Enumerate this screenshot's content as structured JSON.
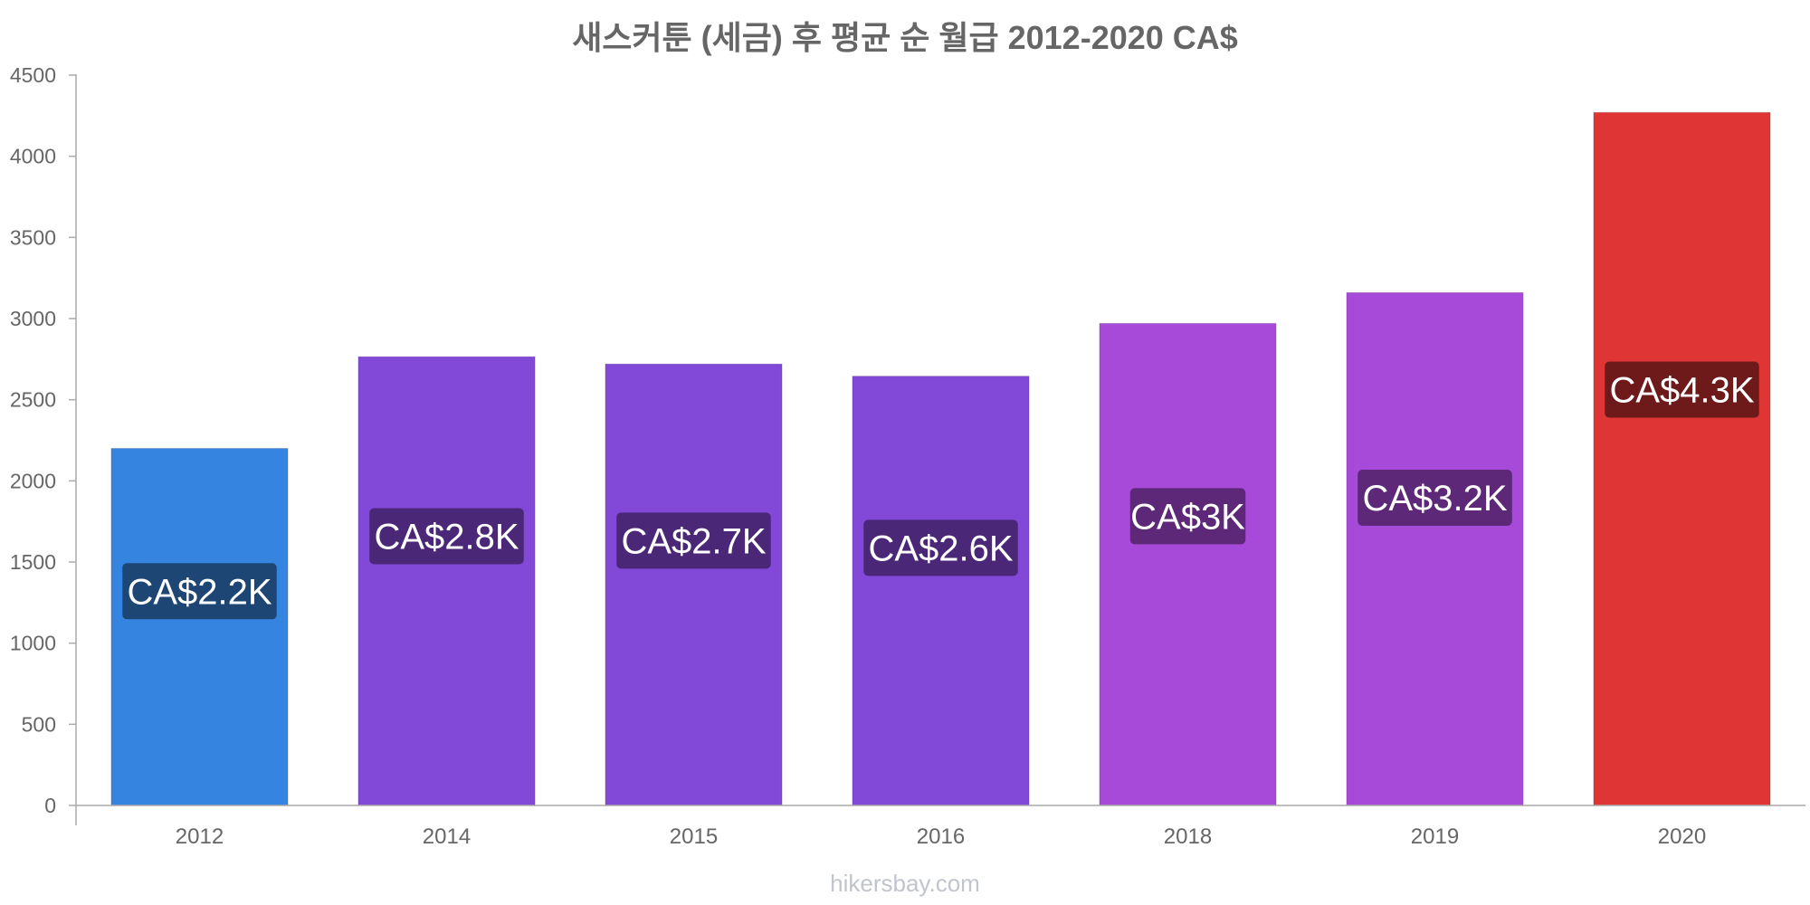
{
  "chart_data": {
    "type": "bar",
    "title": "새스커툰 (세금) 후 평균 순 월급 2012-2020 CA$",
    "xlabel": "",
    "ylabel": "",
    "categories": [
      "2012",
      "2014",
      "2015",
      "2016",
      "2018",
      "2019",
      "2020"
    ],
    "values": [
      2200,
      2765,
      2720,
      2645,
      2970,
      3160,
      4270
    ],
    "data_labels": [
      "CA$2.2K",
      "CA$2.8K",
      "CA$2.7K",
      "CA$2.6K",
      "CA$3K",
      "CA$3.2K",
      "CA$4.3K"
    ],
    "bar_colors": [
      "#3584e0",
      "#8249d9",
      "#8249d9",
      "#8249d9",
      "#a74ad9",
      "#a74ad9",
      "#e03535"
    ],
    "label_bg_colors": [
      "#1e4675",
      "#4a2877",
      "#4a2877",
      "#4a2877",
      "#5c2877",
      "#5c2877",
      "#6e1a1a"
    ],
    "ylim": [
      0,
      4500
    ],
    "yticks": [
      0,
      500,
      1000,
      1500,
      2000,
      2500,
      3000,
      3500,
      4000,
      4500
    ],
    "grid": false,
    "legend": "none"
  },
  "watermark": "hikersbay.com"
}
